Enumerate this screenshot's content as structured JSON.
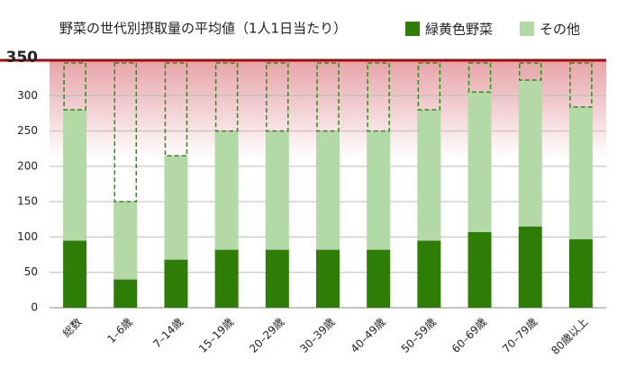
{
  "chart_data": {
    "type": "stacked-bar",
    "title": "野菜の世代別摂取量の平均値（1人1日当たり）",
    "categories": [
      "総数",
      "1–6歳",
      "7–14歳",
      "15–19歳",
      "20–29歳",
      "30–39歳",
      "40–49歳",
      "50–59歳",
      "60–69歳",
      "70–79歳",
      "80歳以上"
    ],
    "series": [
      {
        "name": "緑黄色野菜",
        "color": "#2e7d06",
        "values": [
          95,
          40,
          68,
          82,
          82,
          82,
          82,
          95,
          107,
          115,
          97
        ]
      },
      {
        "name": "その他",
        "color": "#b3d9a6",
        "values": [
          185,
          110,
          147,
          168,
          168,
          168,
          168,
          185,
          198,
          207,
          187
        ]
      }
    ],
    "target": 350,
    "target_color": "#a30a0a",
    "ylim": [
      0,
      350
    ],
    "yticks": [
      0,
      50,
      100,
      150,
      200,
      250,
      300
    ],
    "grid": true
  }
}
